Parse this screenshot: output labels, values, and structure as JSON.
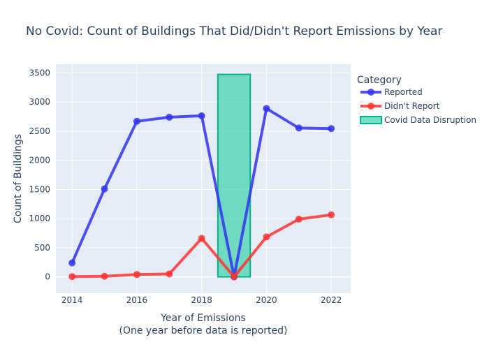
{
  "chart_data": {
    "type": "line",
    "title": "No Covid: Count of Buildings That Did/Didn't Report Emissions by Year",
    "xlabel": "Year of Emissions",
    "xlabel_sub": "(One year before data is reported)",
    "ylabel": "Count of Buildings",
    "x": [
      2014,
      2015,
      2016,
      2017,
      2018,
      2019,
      2020,
      2021,
      2022
    ],
    "xlim": [
      2013.5,
      2022.6
    ],
    "ylim": [
      -280,
      3650
    ],
    "x_ticks": [
      "2014",
      "2016",
      "2018",
      "2020",
      "2022"
    ],
    "y_ticks": [
      "0",
      "500",
      "1000",
      "1500",
      "2000",
      "2500",
      "3000",
      "3500"
    ],
    "grid": true,
    "legend_title": "Category",
    "legend_position": "right",
    "series": [
      {
        "name": "Reported",
        "color": "#3333ee",
        "values": [
          240,
          1510,
          2670,
          2740,
          2765,
          0,
          2890,
          2555,
          2545
        ]
      },
      {
        "name": "Didn't Report",
        "color": "#ff3333",
        "values": [
          5,
          10,
          40,
          50,
          660,
          0,
          685,
          990,
          1065
        ]
      }
    ],
    "highlight": {
      "name": "Covid Data Disruption",
      "x_range": [
        2018.5,
        2019.5
      ],
      "y_range": [
        0,
        3475
      ],
      "fill": "#3dd1ad",
      "stroke": "#00b389"
    }
  }
}
